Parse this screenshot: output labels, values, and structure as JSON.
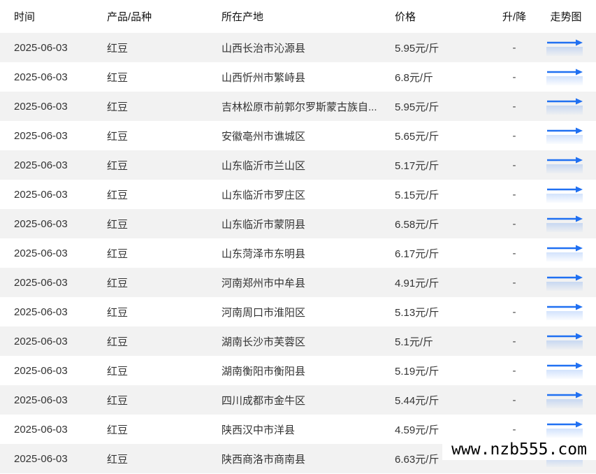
{
  "table": {
    "columns": [
      {
        "key": "date",
        "label": "时间"
      },
      {
        "key": "product",
        "label": "产品/品种"
      },
      {
        "key": "origin",
        "label": "所在产地"
      },
      {
        "key": "price",
        "label": "价格"
      },
      {
        "key": "change",
        "label": "升/降"
      },
      {
        "key": "trend",
        "label": "走势图"
      }
    ],
    "rows": [
      {
        "date": "2025-06-03",
        "product": "红豆",
        "origin": "山西长治市沁源县",
        "price": "5.95元/斤",
        "change": "-"
      },
      {
        "date": "2025-06-03",
        "product": "红豆",
        "origin": "山西忻州市繁峙县",
        "price": "6.8元/斤",
        "change": "-"
      },
      {
        "date": "2025-06-03",
        "product": "红豆",
        "origin": "吉林松原市前郭尔罗斯蒙古族自...",
        "price": "5.95元/斤",
        "change": "-"
      },
      {
        "date": "2025-06-03",
        "product": "红豆",
        "origin": "安徽亳州市谯城区",
        "price": "5.65元/斤",
        "change": "-"
      },
      {
        "date": "2025-06-03",
        "product": "红豆",
        "origin": "山东临沂市兰山区",
        "price": "5.17元/斤",
        "change": "-"
      },
      {
        "date": "2025-06-03",
        "product": "红豆",
        "origin": "山东临沂市罗庄区",
        "price": "5.15元/斤",
        "change": "-"
      },
      {
        "date": "2025-06-03",
        "product": "红豆",
        "origin": "山东临沂市蒙阴县",
        "price": "6.58元/斤",
        "change": "-"
      },
      {
        "date": "2025-06-03",
        "product": "红豆",
        "origin": "山东菏泽市东明县",
        "price": "6.17元/斤",
        "change": "-"
      },
      {
        "date": "2025-06-03",
        "product": "红豆",
        "origin": "河南郑州市中牟县",
        "price": "4.91元/斤",
        "change": "-"
      },
      {
        "date": "2025-06-03",
        "product": "红豆",
        "origin": "河南周口市淮阳区",
        "price": "5.13元/斤",
        "change": "-"
      },
      {
        "date": "2025-06-03",
        "product": "红豆",
        "origin": "湖南长沙市芙蓉区",
        "price": "5.1元/斤",
        "change": "-"
      },
      {
        "date": "2025-06-03",
        "product": "红豆",
        "origin": "湖南衡阳市衡阳县",
        "price": "5.19元/斤",
        "change": "-"
      },
      {
        "date": "2025-06-03",
        "product": "红豆",
        "origin": "四川成都市金牛区",
        "price": "5.44元/斤",
        "change": "-"
      },
      {
        "date": "2025-06-03",
        "product": "红豆",
        "origin": "陕西汉中市洋县",
        "price": "4.59元/斤",
        "change": "-"
      },
      {
        "date": "2025-06-03",
        "product": "红豆",
        "origin": "陕西商洛市商南县",
        "price": "6.63元/斤",
        "change": "-"
      }
    ]
  },
  "watermark": {
    "text": "www.nzb555.com"
  },
  "colors": {
    "accent_blue": "#2070f2",
    "row_alt_bg": "#f2f2f2",
    "text": "#333333",
    "header_text": "#111111",
    "watermark_bg": "#ffffff",
    "watermark_text": "#000000"
  }
}
